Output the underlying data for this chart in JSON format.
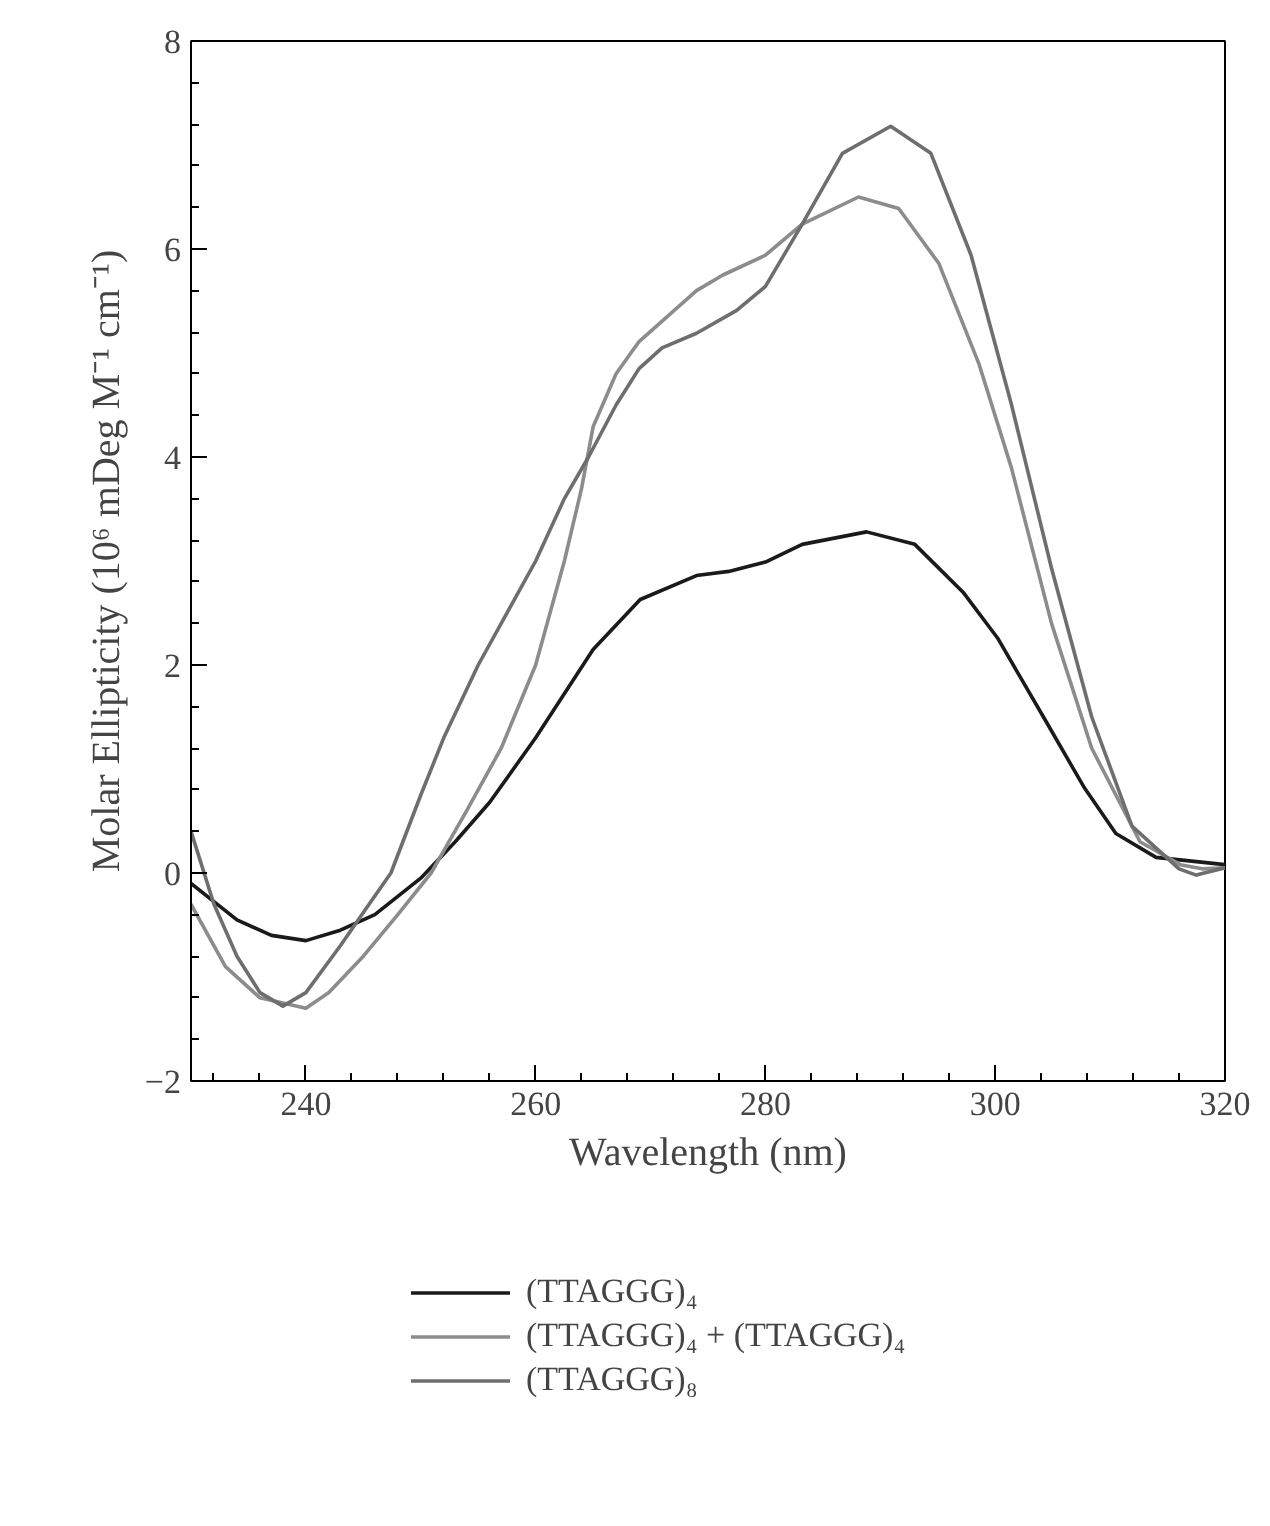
{
  "chart_data": {
    "type": "line",
    "xlabel": "Wavelength (nm)",
    "ylabel": "Molar Ellipticity (10⁶ mDeg M⁻¹ cm⁻¹)",
    "xlim": [
      230,
      320
    ],
    "ylim": [
      -2,
      8
    ],
    "xticks": [
      240,
      260,
      280,
      300,
      320
    ],
    "yticks": [
      -2,
      0,
      2,
      4,
      6,
      8
    ],
    "grid": false,
    "legend": "bottom",
    "marker": "none",
    "line_style": "solid",
    "series": [
      {
        "name": "(TTAGGG)₄",
        "color": "#1a1a1a",
        "x": [
          230,
          234,
          237,
          240,
          243,
          246,
          250,
          253,
          256,
          260,
          265,
          269.1,
          274,
          276.8,
          280,
          283.2,
          288.8,
          293,
          297.2,
          300.2,
          304.2,
          307.7,
          310.5,
          314,
          320
        ],
        "values": [
          -0.1,
          -0.45,
          -0.6,
          -0.65,
          -0.55,
          -0.4,
          -0.05,
          0.3,
          0.68,
          1.3,
          2.15,
          2.63,
          2.86,
          2.9,
          2.99,
          3.16,
          3.28,
          3.16,
          2.7,
          2.26,
          1.5,
          0.83,
          0.38,
          0.15,
          0.08
        ]
      },
      {
        "name": "(TTAGGG)₄ + (TTAGGG)₄",
        "color": "#8c8c8c",
        "x": [
          230,
          233,
          236,
          238,
          240,
          242,
          245,
          248,
          250.9,
          254,
          257,
          260,
          262.5,
          264,
          265,
          267,
          269,
          274,
          276.3,
          280,
          283.2,
          288.1,
          291.6,
          295.1,
          298.6,
          301.4,
          304.9,
          308.4,
          312.6,
          316.1,
          318,
          320
        ],
        "values": [
          -0.3,
          -0.9,
          -1.2,
          -1.25,
          -1.3,
          -1.15,
          -0.8,
          -0.4,
          0,
          0.6,
          1.2,
          2.0,
          3.0,
          3.7,
          4.29,
          4.8,
          5.11,
          5.6,
          5.75,
          5.94,
          6.24,
          6.5,
          6.39,
          5.86,
          4.89,
          3.9,
          2.4,
          1.2,
          0.3,
          0.08,
          0.04,
          0.05
        ]
      },
      {
        "name": "(TTAGGG)₈",
        "color": "#6e6e6e",
        "x": [
          230,
          232,
          234,
          236,
          238,
          240,
          243,
          245.5,
          247.4,
          250,
          252,
          255,
          258,
          260,
          262.5,
          264.6,
          267,
          269,
          271,
          274,
          277.5,
          280,
          283.2,
          286.7,
          290.9,
          294.4,
          297.9,
          301.4,
          304.9,
          308.4,
          311.9,
          316,
          317.5,
          320
        ],
        "values": [
          0.4,
          -0.3,
          -0.8,
          -1.15,
          -1.28,
          -1.15,
          -0.7,
          -0.3,
          0,
          0.75,
          1.3,
          2.0,
          2.6,
          3.0,
          3.6,
          4.0,
          4.5,
          4.85,
          5.05,
          5.19,
          5.41,
          5.64,
          6.24,
          6.92,
          7.18,
          6.92,
          5.94,
          4.51,
          2.93,
          1.5,
          0.45,
          0.04,
          -0.02,
          0.05
        ]
      }
    ]
  }
}
